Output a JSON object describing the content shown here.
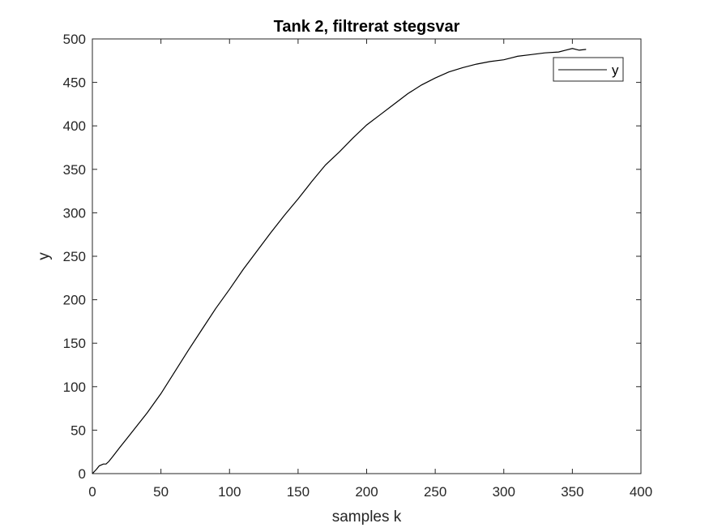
{
  "chart_data": {
    "type": "line",
    "title": "Tank 2, filtrerat stegsvar",
    "xlabel": "samples k",
    "ylabel": "y",
    "xlim": [
      0,
      400
    ],
    "ylim": [
      0,
      500
    ],
    "xticks": [
      0,
      50,
      100,
      150,
      200,
      250,
      300,
      350,
      400
    ],
    "yticks": [
      0,
      50,
      100,
      150,
      200,
      250,
      300,
      350,
      400,
      450,
      500
    ],
    "grid": false,
    "legend_position": "top-right",
    "series": [
      {
        "name": "y",
        "color": "#000000",
        "x": [
          0,
          3,
          5,
          8,
          10,
          12,
          15,
          20,
          25,
          30,
          40,
          50,
          60,
          70,
          80,
          90,
          100,
          110,
          120,
          130,
          140,
          150,
          160,
          170,
          180,
          190,
          200,
          210,
          220,
          230,
          240,
          250,
          260,
          270,
          280,
          290,
          300,
          310,
          320,
          330,
          340,
          345,
          350,
          355,
          360
        ],
        "values": [
          0,
          5,
          9,
          11,
          11,
          14,
          20,
          30,
          40,
          50,
          70,
          92,
          117,
          142,
          166,
          190,
          212,
          235,
          256,
          277,
          297,
          316,
          336,
          355,
          370,
          386,
          401,
          413,
          425,
          437,
          447,
          455,
          462,
          467,
          471,
          474,
          476,
          480,
          482,
          484,
          485,
          487,
          489,
          487,
          488
        ]
      }
    ]
  }
}
